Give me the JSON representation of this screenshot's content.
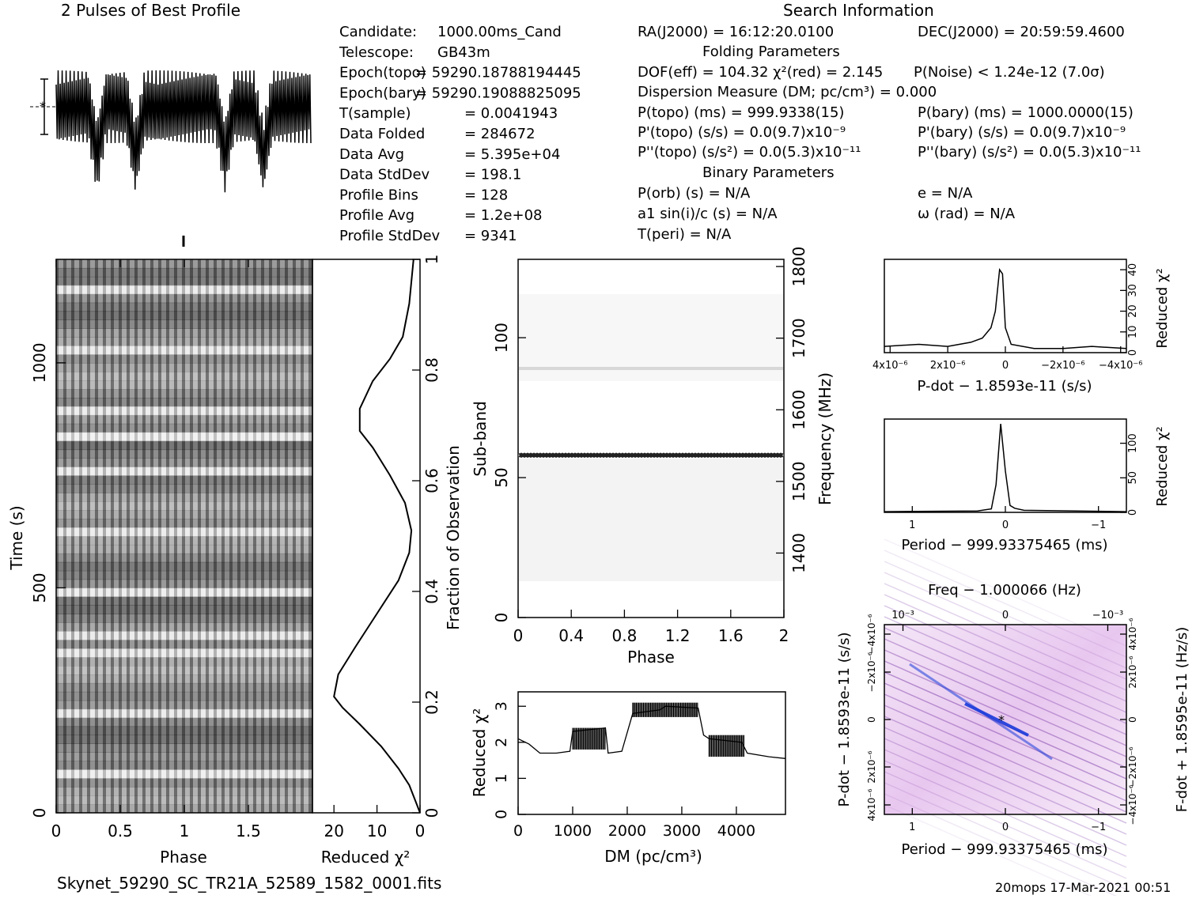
{
  "page_title": "2 Pulses of Best Profile",
  "search_title": "Search Information",
  "footer": {
    "filename": "Skynet_59290_SC_TR21A_52589_1582_0001.fits",
    "stamp": "20mops 17-Mar-2021 00:51"
  },
  "info_left": [
    [
      "Candidate:",
      "1000.00ms_Cand"
    ],
    [
      "Telescope:",
      "GB43m"
    ],
    [
      "Epoch(topo)",
      "= 59290.18788194445"
    ],
    [
      "Epoch(bary)",
      "= 59290.19088825095"
    ],
    [
      "T(sample)",
      "= 0.0041943"
    ],
    [
      "Data Folded",
      "= 284672"
    ],
    [
      "Data Avg",
      "= 5.395e+04"
    ],
    [
      "Data StdDev",
      "= 198.1"
    ],
    [
      "Profile Bins",
      "= 128"
    ],
    [
      "Profile Avg",
      "= 1.2e+08"
    ],
    [
      "Profile StdDev",
      "= 9341"
    ]
  ],
  "info_mid": {
    "ra": "RA(J2000) = 16:12:20.0100",
    "dec": "DEC(J2000) = 20:59:59.4600",
    "folding_header": "Folding Parameters",
    "dof_line": "DOF(eff) = 104.32  χ²(red) = 2.145",
    "pnoise": "P(Noise) < 1.24e-12  (7.0σ)",
    "dm_line": "Dispersion Measure (DM; pc/cm³) = 0.000",
    "ptopo": "P(topo) (ms) =  999.9338(15)",
    "pbary": "P(bary) (ms) =  1000.0000(15)",
    "pdot_topo": "P'(topo) (s/s) = 0.0(9.7)x10⁻⁹",
    "pdot_bary": "P'(bary) (s/s) = 0.0(9.7)x10⁻⁹",
    "pddot_topo": "P''(topo) (s/s²) = 0.0(5.3)x10⁻¹¹",
    "pddot_bary": "P''(bary) (s/s²) = 0.0(5.3)x10⁻¹¹",
    "binary_header": "Binary Parameters",
    "porb": "P(orb) (s) = N/A",
    "ecc": "e = N/A",
    "a1": "a1 sin(i)/c (s) = N/A",
    "omega": "ω (rad) = N/A",
    "tperi": "T(peri) = N/A"
  },
  "chart_data": [
    {
      "type": "line",
      "name": "profile",
      "title": "2 Pulses of Best Profile",
      "x": "phase 0-2",
      "pulse_period_bins": 128,
      "dips_at_phase": [
        0.32,
        0.62,
        1.32,
        1.62
      ],
      "sigma_bar": true
    },
    {
      "type": "heatmap",
      "name": "time-vs-phase",
      "xlabel": "Phase",
      "ylabel": "Time (s)",
      "xlim": [
        0,
        2
      ],
      "ylim": [
        0,
        1230
      ],
      "x_ticks": [
        "0",
        "0.5",
        "1",
        "1.5"
      ],
      "y_ticks": [
        "0",
        "500",
        "1000"
      ]
    },
    {
      "type": "line",
      "name": "reduced-chi2-vs-time",
      "xlabel": "Reduced χ²",
      "ylabel_right": "Fraction of Observation",
      "xlim": [
        25,
        0
      ],
      "ylim": [
        0,
        1
      ],
      "x_ticks": [
        "20",
        "10",
        "0"
      ],
      "y_ticks": [
        "0",
        "0.2",
        "0.4",
        "0.6",
        "0.8",
        "1"
      ],
      "points": [
        [
          0,
          0
        ],
        [
          1,
          0.02
        ],
        [
          2.5,
          0.05
        ],
        [
          5,
          0.08
        ],
        [
          9,
          0.12
        ],
        [
          14,
          0.16
        ],
        [
          18,
          0.19
        ],
        [
          20,
          0.21
        ],
        [
          19,
          0.25
        ],
        [
          15,
          0.3
        ],
        [
          10,
          0.36
        ],
        [
          5,
          0.42
        ],
        [
          2.5,
          0.47
        ],
        [
          2,
          0.51
        ],
        [
          3.5,
          0.56
        ],
        [
          7,
          0.61
        ],
        [
          11,
          0.66
        ],
        [
          14,
          0.69
        ],
        [
          14,
          0.73
        ],
        [
          11,
          0.78
        ],
        [
          7,
          0.82
        ],
        [
          4,
          0.86
        ],
        [
          2.5,
          0.92
        ],
        [
          1.5,
          1.0
        ]
      ]
    },
    {
      "type": "heatmap",
      "name": "subband-vs-phase",
      "xlabel": "Phase",
      "ylabel": "Sub-band",
      "ylabel_right": "Frequency (MHz)",
      "xlim": [
        0,
        2
      ],
      "ylim": [
        0,
        128
      ],
      "x_ticks": [
        "0",
        "0.4",
        "0.8",
        "1.2",
        "1.6",
        "2"
      ],
      "y_ticks": [
        "0",
        "50",
        "100"
      ],
      "y2_ticks": [
        "1400",
        "1500",
        "1600",
        "1700",
        "1800"
      ],
      "bright_rows": [
        89,
        57,
        58
      ]
    },
    {
      "type": "line",
      "name": "reduced-chi2-vs-dm",
      "xlabel": "DM (pc/cm³)",
      "ylabel": "Reduced χ²",
      "xlim": [
        0,
        4900
      ],
      "ylim": [
        0,
        3.4
      ],
      "x_ticks": [
        "0",
        "1000",
        "2000",
        "3000",
        "4000"
      ],
      "y_ticks": [
        "0",
        "1",
        "2",
        "3"
      ],
      "points": [
        [
          0,
          2.1
        ],
        [
          200,
          1.95
        ],
        [
          400,
          1.7
        ],
        [
          700,
          1.7
        ],
        [
          950,
          1.75
        ],
        [
          1000,
          2.3
        ],
        [
          1600,
          2.4
        ],
        [
          1650,
          1.7
        ],
        [
          1900,
          1.75
        ],
        [
          2100,
          2.8
        ],
        [
          2600,
          2.9
        ],
        [
          2700,
          3.0
        ],
        [
          3300,
          2.95
        ],
        [
          3400,
          2.2
        ],
        [
          3500,
          2.1
        ],
        [
          4100,
          2.0
        ],
        [
          4200,
          1.7
        ],
        [
          4600,
          1.6
        ],
        [
          4900,
          1.55
        ]
      ]
    },
    {
      "type": "line",
      "name": "reduced-chi2-vs-pdot",
      "xlabel": "P-dot − 1.8593e-11 (s/s)",
      "ylabel_right": "Reduced χ²",
      "xlim": [
        4.2e-06,
        -4.2e-06
      ],
      "ylim": [
        0,
        45
      ],
      "x_ticks": [
        "4x10⁻⁶",
        "2x10⁻⁶",
        "0",
        "−2x10⁻⁶",
        "−4x10⁻⁶"
      ],
      "y_ticks": [
        "0",
        "10",
        "20",
        "30",
        "40"
      ],
      "points": [
        [
          4.2e-06,
          3
        ],
        [
          3e-06,
          4
        ],
        [
          2e-06,
          3
        ],
        [
          1.2e-06,
          5
        ],
        [
          8e-07,
          7
        ],
        [
          5e-07,
          12
        ],
        [
          3.5e-07,
          20
        ],
        [
          2e-07,
          40
        ],
        [
          1e-07,
          38
        ],
        [
          0,
          12
        ],
        [
          -2e-07,
          4
        ],
        [
          -1e-06,
          2
        ],
        [
          -2e-06,
          2
        ],
        [
          -3e-06,
          3
        ],
        [
          -4.2e-06,
          2
        ]
      ]
    },
    {
      "type": "line",
      "name": "reduced-chi2-vs-period",
      "xlabel": "Period − 999.93375465 (ms)",
      "ylabel_right": "Reduced χ²",
      "xlim": [
        1.3,
        -1.3
      ],
      "ylim": [
        0,
        135
      ],
      "x_ticks": [
        "1",
        "0",
        "−1"
      ],
      "y_ticks": [
        "0",
        "50",
        "100"
      ],
      "points": [
        [
          1.3,
          1
        ],
        [
          0.3,
          2
        ],
        [
          0.15,
          5
        ],
        [
          0.1,
          40
        ],
        [
          0.05,
          128
        ],
        [
          0.0,
          60
        ],
        [
          -0.05,
          10
        ],
        [
          -0.1,
          6
        ],
        [
          -0.2,
          3
        ],
        [
          -1.3,
          1
        ]
      ]
    },
    {
      "type": "heatmap",
      "name": "period-pdot-plane",
      "xlabel": "Period − 999.93375465 (ms)",
      "x2label": "Freq − 1.000066 (Hz)",
      "ylabel": "P-dot − 1.8593e-11 (s/s)",
      "y2label": "F-dot + 1.8595e-11 (Hz/s)",
      "x_ticks": [
        "1",
        "0",
        "−1"
      ],
      "x2_ticks": [
        "−10⁻³",
        "0",
        "10⁻³"
      ],
      "y_ticks": [
        "4x10⁻⁶",
        "2x10⁻⁶",
        "0",
        "−2x10⁻⁶",
        "−4x10⁻⁶"
      ],
      "y2_ticks": [
        "−4x10⁻⁶",
        "−2x10⁻⁶",
        "0",
        "2x10⁻⁶",
        "4x10⁻⁶"
      ],
      "best": [
        0,
        0
      ],
      "colors": {
        "low": "#ffffff",
        "mid": "#d9a6e6",
        "high": "#1a3ad9"
      }
    }
  ]
}
